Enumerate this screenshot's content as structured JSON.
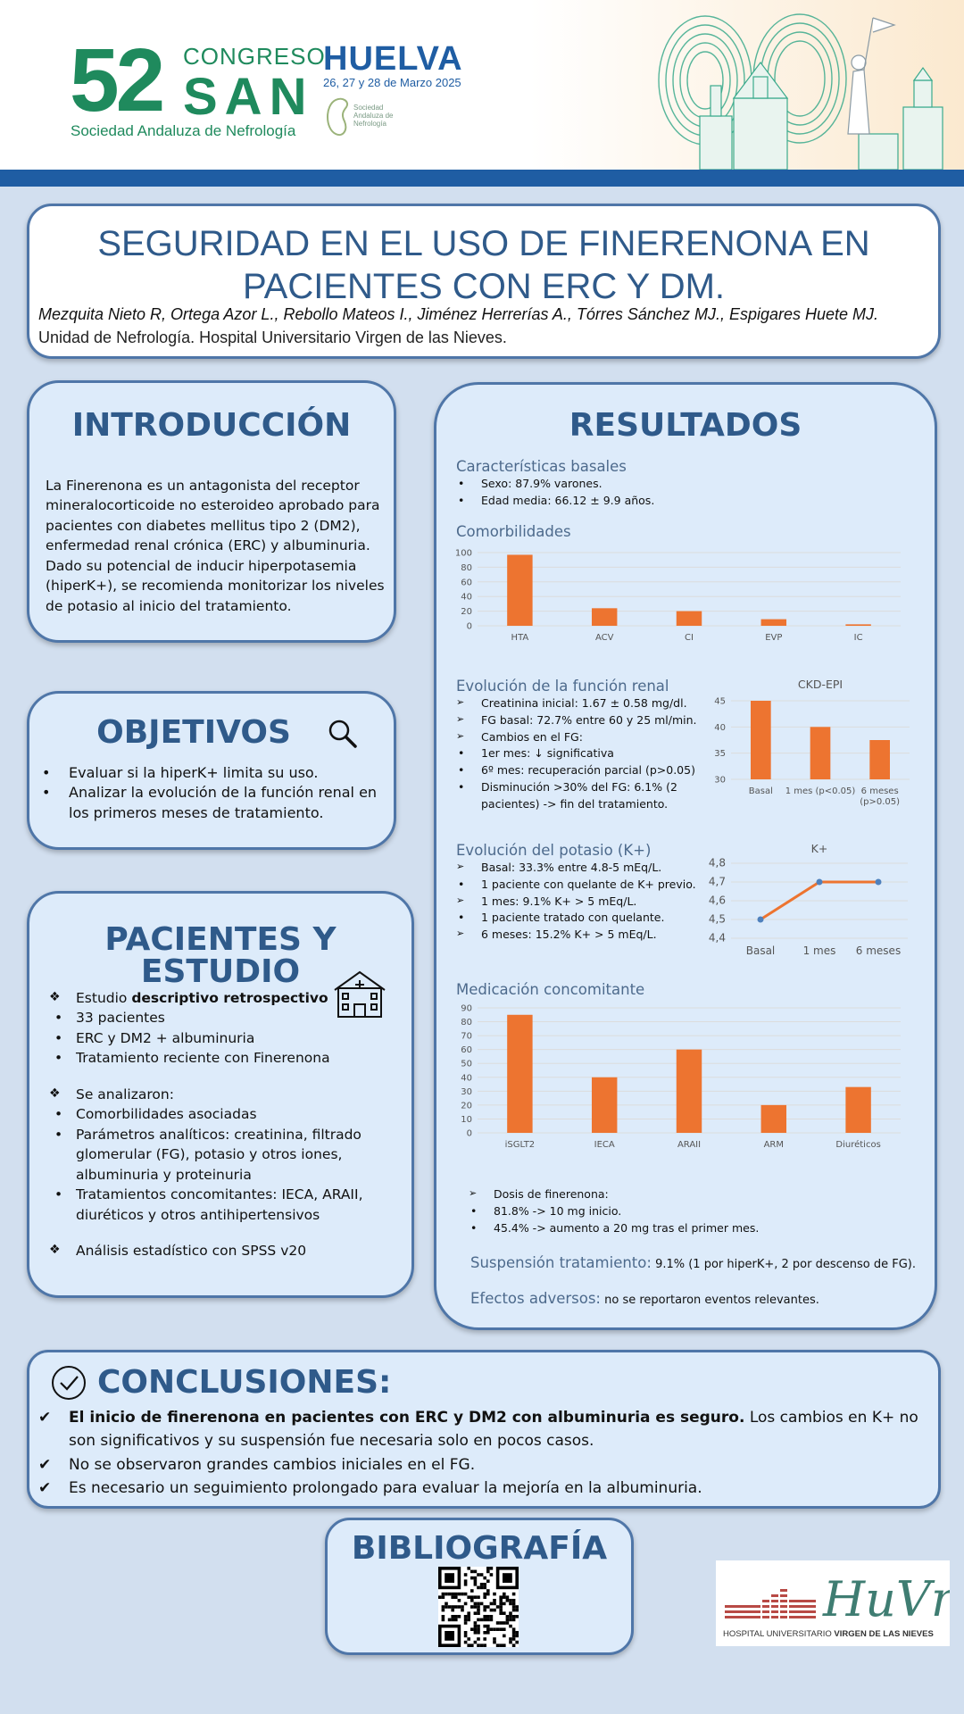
{
  "header": {
    "congress_number": "52",
    "congress_word": "CONGRESO",
    "congress_acronym": "SAN",
    "society": "Sociedad Andaluza de Nefrología",
    "city": "HUELVA",
    "dates": "26, 27 y 28 de Marzo 2025",
    "logo_text": "Sociedad Andaluza de Nefrología"
  },
  "title": {
    "line1": "SEGURIDAD EN EL USO DE FINERENONA EN",
    "line2": "PACIENTES CON ERC Y DM.",
    "authors": "Mezquita Nieto  R, Ortega Azor L., Rebollo Mateos I., Jiménez Herrerías A.,  Tórres Sánchez MJ., Espigares Huete MJ.",
    "affiliation": "Unidad de Nefrología. Hospital Universitario Virgen de las Nieves."
  },
  "intro": {
    "heading": "INTRODUCCIÓN",
    "text": "La Finerenona es un antagonista del receptor mineralocorticoide no esteroideo aprobado para pacientes con diabetes mellitus tipo 2 (DM2), enfermedad renal crónica (ERC) y albuminuria. Dado su potencial de inducir hiperpotasemia (hiperK+), se recomienda monitorizar los niveles de potasio al inicio del tratamiento."
  },
  "objetivos": {
    "heading": "OBJETIVOS",
    "items": [
      "Evaluar si la hiperK+ limita su uso.",
      "Analizar la evolución de la función renal en los primeros meses de tratamiento."
    ]
  },
  "pacientes": {
    "heading": "PACIENTES Y ESTUDIO",
    "study_prefix": "Estudio ",
    "study_bold": "descriptivo retrospectivo",
    "items1": [
      "33 pacientes",
      "ERC y DM2 + albuminuria",
      "Tratamiento reciente con Finerenona"
    ],
    "analyzed": "Se analizaron:",
    "items2": [
      "Comorbilidades asociadas",
      "Parámetros analíticos: creatinina, filtrado glomerular (FG), potasio y otros iones, albuminuria y proteinuria",
      "Tratamientos concomitantes: IECA, ARAII, diuréticos y otros antihipertensivos"
    ],
    "stats": "Análisis estadístico con SPSS v20"
  },
  "resultados": {
    "heading": "RESULTADOS",
    "basal_heading": "Características basales",
    "basal_items": [
      "Sexo: 87.9% varones.",
      "Edad media: 66.12 ± 9.9 años."
    ],
    "comorb_heading": "Comorbilidades",
    "renal_heading": "Evolución de la función renal",
    "renal_items": [
      {
        "type": "arr",
        "text": "Creatinina inicial: 1.67 ± 0.58 mg/dl."
      },
      {
        "type": "arr",
        "text": "FG basal: 72.7% entre 60 y 25 ml/min."
      },
      {
        "type": "arr",
        "text": "Cambios en el FG:"
      },
      {
        "type": "bul",
        "text": "1er mes: ↓ significativa"
      },
      {
        "type": "bul",
        "text": "6º mes: recuperación parcial (p>0.05)"
      },
      {
        "type": "bul",
        "text": "Disminución >30% del FG: 6.1% (2 pacientes)  -> fin del  tratamiento."
      }
    ],
    "k_heading": "Evolución del potasio (K+)",
    "k_items": [
      {
        "type": "arr",
        "text": "Basal: 33.3% entre 4.8-5 mEq/L."
      },
      {
        "type": "bul",
        "text": "1 paciente con quelante de K+ previo."
      },
      {
        "type": "arr",
        "text": "1 mes: 9.1%  K+ > 5 mEq/L."
      },
      {
        "type": "bul",
        "text": "1 paciente tratado con quelante."
      },
      {
        "type": "arr",
        "text": "6 meses: 15.2%  K+ > 5 mEq/L."
      }
    ],
    "med_heading": "Medicación concomitante",
    "dose_items": [
      {
        "type": "arr",
        "text": "Dosis de finerenona:"
      },
      {
        "type": "bul",
        "text": "81.8% -> 10 mg inicio."
      },
      {
        "type": "bul",
        "text": "45.4% -> aumento a 20 mg tras el primer mes."
      }
    ],
    "suspension_label": "Suspensión tratamiento:",
    "suspension_text": " 9.1% (1 por hiperK+, 2 por descenso de FG).",
    "adverse_label": "Efectos adversos:",
    "adverse_text": " no se reportaron eventos relevantes."
  },
  "chart_data": [
    {
      "type": "bar",
      "title": "",
      "categories": [
        "HTA",
        "ACV",
        "CI",
        "EVP",
        "IC"
      ],
      "values": [
        97,
        24,
        20,
        9,
        2
      ],
      "ylim": [
        0,
        100
      ],
      "yticks": [
        0,
        20,
        40,
        60,
        80,
        100
      ],
      "color": "#ed7430"
    },
    {
      "type": "bar",
      "title": "CKD-EPI",
      "categories": [
        "Basal",
        "1 mes (p<0.05)",
        "6 meses (p>0.05)"
      ],
      "values": [
        45,
        40,
        37.5
      ],
      "ylim": [
        30,
        45
      ],
      "yticks": [
        30,
        35,
        40,
        45
      ],
      "color": "#ed7430"
    },
    {
      "type": "line",
      "title": "K+",
      "categories": [
        "Basal",
        "1 mes",
        "6 meses"
      ],
      "values": [
        4.5,
        4.7,
        4.7
      ],
      "ylim": [
        4.4,
        4.8
      ],
      "yticks": [
        "4,4",
        "4,5",
        "4,6",
        "4,7",
        "4,8"
      ],
      "color": "#ed7430",
      "marker_color": "#4f81bd"
    },
    {
      "type": "bar",
      "title": "",
      "categories": [
        "iSGLT2",
        "IECA",
        "ARAII",
        "ARM",
        "Diuréticos"
      ],
      "values": [
        85,
        40,
        60,
        20,
        33
      ],
      "ylim": [
        0,
        90
      ],
      "yticks": [
        0,
        10,
        20,
        30,
        40,
        50,
        60,
        70,
        80,
        90
      ],
      "color": "#ed7430"
    }
  ],
  "conclusiones": {
    "heading": "CONCLUSIONES:",
    "item1_bold": "El inicio de finerenona en pacientes con ERC y DM2 con albuminuria es seguro.",
    "item1_rest": " Los cambios en K+ no son significativos y su suspensión fue necesaria solo en pocos casos.",
    "item2": "No se observaron grandes cambios iniciales en el FG.",
    "item3": "Es necesario un seguimiento prolongado para evaluar la mejoría en la albuminuria."
  },
  "bibliografia": {
    "heading": "BIBLIOGRAFÍA"
  },
  "hospital_logo": {
    "monogram": "HuVn",
    "name_prefix": "HOSPITAL UNIVERSITARIO ",
    "name_bold": "VIRGEN DE LAS NIEVES"
  },
  "colors": {
    "accent": "#2f5a8a",
    "bar": "#ed7430",
    "header_bar": "#1f5da3",
    "congress_green": "#1f8a5d"
  }
}
